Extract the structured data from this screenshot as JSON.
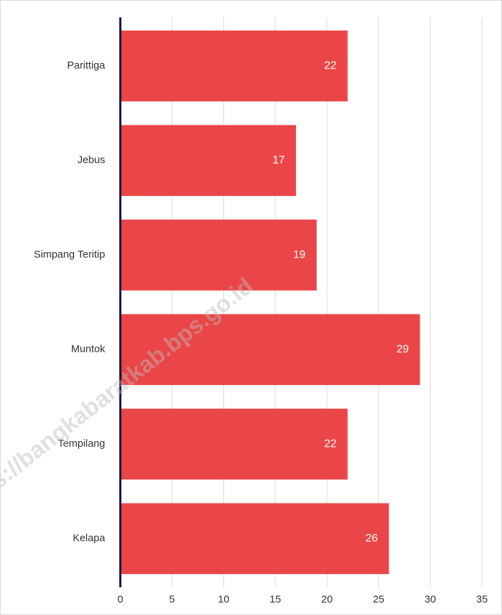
{
  "chart_data": {
    "type": "bar",
    "orientation": "horizontal",
    "categories": [
      "Parittiga",
      "Jebus",
      "Simpang Teritip",
      "Muntok",
      "Tempilang",
      "Kelapa"
    ],
    "values": [
      22,
      17,
      19,
      29,
      22,
      26
    ],
    "color": "#eb4647",
    "xlim": [
      0,
      35
    ],
    "xticks": [
      0,
      5,
      10,
      15,
      20,
      25,
      30,
      35
    ],
    "grid": true,
    "watermark": "s://bangkabaratkab.bps.go.id"
  }
}
